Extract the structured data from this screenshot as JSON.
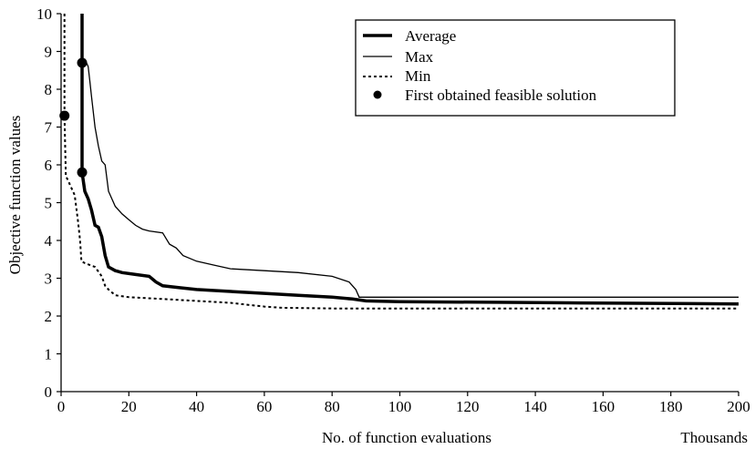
{
  "chart_data": {
    "type": "line",
    "title": "",
    "xlabel": "No. of function evaluations",
    "x_unit_label": "Thousands",
    "ylabel": "Objective function values",
    "xlim": [
      0,
      200
    ],
    "ylim": [
      0,
      10
    ],
    "x_ticks": [
      0,
      20,
      40,
      60,
      80,
      100,
      120,
      140,
      160,
      180,
      200
    ],
    "y_ticks": [
      0,
      1,
      2,
      3,
      4,
      5,
      6,
      7,
      8,
      9,
      10
    ],
    "grid": false,
    "legend_position": "top-right",
    "series": [
      {
        "name": "Average",
        "style": "thick-solid",
        "color": "#000000",
        "points": [
          [
            6.2,
            10.0
          ],
          [
            6.2,
            5.8
          ],
          [
            7,
            5.3
          ],
          [
            8,
            5.1
          ],
          [
            9,
            4.8
          ],
          [
            10,
            4.4
          ],
          [
            11,
            4.35
          ],
          [
            12,
            4.1
          ],
          [
            13,
            3.6
          ],
          [
            14,
            3.3
          ],
          [
            16,
            3.2
          ],
          [
            18,
            3.15
          ],
          [
            22,
            3.1
          ],
          [
            26,
            3.05
          ],
          [
            28,
            2.9
          ],
          [
            30,
            2.8
          ],
          [
            35,
            2.75
          ],
          [
            40,
            2.7
          ],
          [
            50,
            2.65
          ],
          [
            60,
            2.6
          ],
          [
            70,
            2.55
          ],
          [
            80,
            2.5
          ],
          [
            86,
            2.45
          ],
          [
            90,
            2.4
          ],
          [
            100,
            2.38
          ],
          [
            150,
            2.35
          ],
          [
            200,
            2.32
          ]
        ]
      },
      {
        "name": "Max",
        "style": "thin-solid",
        "color": "#000000",
        "points": [
          [
            7,
            8.8
          ],
          [
            7.5,
            8.7
          ],
          [
            8,
            8.6
          ],
          [
            8.5,
            8.2
          ],
          [
            9,
            7.8
          ],
          [
            10,
            7.0
          ],
          [
            11,
            6.5
          ],
          [
            12,
            6.1
          ],
          [
            13,
            6.0
          ],
          [
            14,
            5.3
          ],
          [
            16,
            4.9
          ],
          [
            18,
            4.7
          ],
          [
            20,
            4.55
          ],
          [
            22,
            4.4
          ],
          [
            24,
            4.3
          ],
          [
            26,
            4.25
          ],
          [
            30,
            4.2
          ],
          [
            32,
            3.9
          ],
          [
            34,
            3.8
          ],
          [
            36,
            3.6
          ],
          [
            40,
            3.45
          ],
          [
            45,
            3.35
          ],
          [
            50,
            3.25
          ],
          [
            60,
            3.2
          ],
          [
            70,
            3.15
          ],
          [
            80,
            3.05
          ],
          [
            85,
            2.9
          ],
          [
            87,
            2.7
          ],
          [
            88,
            2.5
          ],
          [
            100,
            2.5
          ],
          [
            150,
            2.5
          ],
          [
            200,
            2.5
          ]
        ]
      },
      {
        "name": "Min",
        "style": "dotted",
        "color": "#000000",
        "points": [
          [
            1,
            10.0
          ],
          [
            1,
            7.3
          ],
          [
            1.4,
            5.7
          ],
          [
            2,
            5.6
          ],
          [
            3,
            5.4
          ],
          [
            4,
            5.2
          ],
          [
            5,
            4.5
          ],
          [
            5.6,
            4.0
          ],
          [
            6,
            3.45
          ],
          [
            7,
            3.4
          ],
          [
            10,
            3.3
          ],
          [
            12,
            3.05
          ],
          [
            13,
            2.8
          ],
          [
            14,
            2.7
          ],
          [
            16,
            2.55
          ],
          [
            20,
            2.5
          ],
          [
            30,
            2.45
          ],
          [
            40,
            2.4
          ],
          [
            50,
            2.35
          ],
          [
            55,
            2.3
          ],
          [
            60,
            2.25
          ],
          [
            65,
            2.22
          ],
          [
            80,
            2.2
          ],
          [
            100,
            2.2
          ],
          [
            150,
            2.2
          ],
          [
            200,
            2.2
          ]
        ]
      },
      {
        "name": "First obtained feasible solution",
        "style": "marker",
        "color": "#000000",
        "points": [
          [
            1,
            7.3
          ],
          [
            6.2,
            8.7
          ],
          [
            6.2,
            5.8
          ]
        ]
      }
    ]
  }
}
